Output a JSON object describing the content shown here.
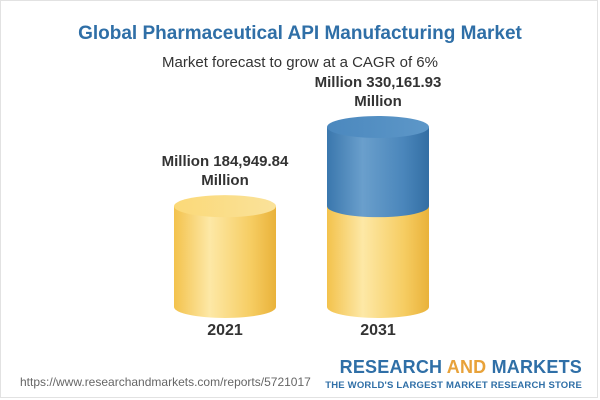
{
  "chart_data": {
    "type": "bar",
    "title": "Global Pharmaceutical API Manufacturing Market",
    "subtitle": "Market forecast to grow at a CAGR of 6%",
    "categories": [
      "2021",
      "2031"
    ],
    "values": [
      184949.84,
      330161.93
    ],
    "value_labels": [
      "Million 184,949.84 Million",
      "Million 330,161.93 Million"
    ],
    "base_color": "#f5c64f",
    "growth_color": "#3f7fb7"
  },
  "footer": {
    "url": "https://www.researchandmarkets.com/reports/5721017",
    "brand_part1": "RESEARCH ",
    "brand_and": "AND",
    "brand_part2": " MARKETS",
    "tagline": "THE WORLD'S LARGEST MARKET RESEARCH STORE"
  }
}
